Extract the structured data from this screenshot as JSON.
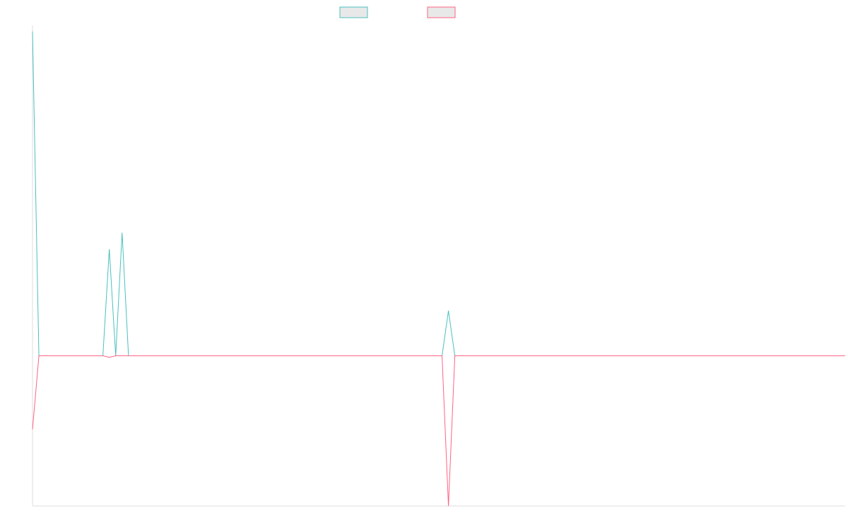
{
  "chart_data": {
    "type": "line",
    "title": "",
    "xlabel": "",
    "ylabel": "",
    "grid": false,
    "legend_position": "top-center",
    "x": [
      0,
      1,
      2,
      3,
      4,
      5,
      6,
      7,
      8,
      9,
      10,
      11,
      12,
      13,
      14,
      15,
      16,
      17,
      18,
      19,
      20,
      21,
      22,
      23,
      24,
      25,
      26,
      27,
      28,
      29,
      30,
      31,
      32,
      33,
      34,
      35,
      36,
      37,
      38,
      39,
      40,
      41,
      42,
      43,
      44,
      45,
      46,
      47,
      48,
      49,
      50,
      51,
      52,
      53,
      54,
      55,
      56,
      57,
      58,
      59,
      60,
      61,
      62,
      63,
      64,
      65,
      66,
      67,
      68,
      69,
      70,
      71,
      72,
      73,
      74,
      75,
      76,
      77,
      78,
      79,
      80,
      81,
      82,
      83,
      84,
      85,
      86,
      87,
      88,
      89,
      90,
      91,
      92,
      93,
      94,
      95,
      96,
      97,
      98,
      99,
      100,
      101,
      102,
      103,
      104,
      105,
      106,
      107,
      108,
      109,
      110,
      111,
      112,
      113,
      114,
      115,
      116,
      117,
      118,
      119,
      120,
      121,
      122,
      123,
      124,
      125,
      126,
      127
    ],
    "ylim": [
      -50,
      110
    ],
    "series": [
      {
        "color": "#4bc0c0",
        "values": [
          108,
          0,
          0,
          0,
          0,
          0,
          0,
          0,
          0,
          0,
          0,
          0,
          35.5,
          0,
          41,
          0,
          0,
          0,
          0,
          0,
          0,
          0,
          0,
          0,
          0,
          0,
          0,
          0,
          0,
          0,
          0,
          0,
          0,
          0,
          0,
          0,
          0,
          0,
          0,
          0,
          0,
          0,
          0,
          0,
          0,
          0,
          0,
          0,
          0,
          0,
          0,
          0,
          0,
          0,
          0,
          0,
          0,
          0,
          0,
          0,
          0,
          0,
          0,
          0,
          0,
          15,
          0,
          0,
          0,
          0,
          0,
          0,
          0,
          0,
          0,
          0,
          0,
          0,
          0,
          0,
          0,
          0,
          0,
          0,
          0,
          0,
          0,
          0,
          0,
          0,
          0,
          0,
          0,
          0,
          0,
          0,
          0,
          0,
          0,
          0,
          0,
          0,
          0,
          0,
          0,
          0,
          0,
          0,
          0,
          0,
          0,
          0,
          0,
          0,
          0,
          0,
          0,
          0,
          0,
          0,
          0,
          0,
          0,
          0,
          0,
          0,
          0,
          0
        ]
      },
      {
        "color": "#ff6384",
        "values": [
          -24.5,
          0,
          0,
          0,
          0,
          0,
          0,
          0,
          0,
          0,
          0,
          0,
          -0.5,
          0,
          0,
          0,
          0,
          0,
          0,
          0,
          0,
          0,
          0,
          0,
          0,
          0,
          0,
          0,
          0,
          0,
          0,
          0,
          0,
          0,
          0,
          0,
          0,
          0,
          0,
          0,
          0,
          0,
          0,
          0,
          0,
          0,
          0,
          0,
          0,
          0,
          0,
          0,
          0,
          0,
          0,
          0,
          0,
          0,
          0,
          0,
          0,
          0,
          0,
          0,
          0,
          -50,
          0,
          0,
          0,
          0,
          0,
          0,
          0,
          0,
          0,
          0,
          0,
          0,
          0,
          0,
          0,
          0,
          0,
          0,
          0,
          0,
          0,
          0,
          0,
          0,
          0,
          0,
          0,
          0,
          0,
          0,
          0,
          0,
          0,
          0,
          0,
          0,
          0,
          0,
          0,
          0,
          0,
          0,
          0,
          0,
          0,
          0,
          0,
          0,
          0,
          0,
          0,
          0,
          0,
          0,
          0,
          0,
          0,
          0,
          0,
          0,
          0,
          0
        ]
      }
    ]
  }
}
